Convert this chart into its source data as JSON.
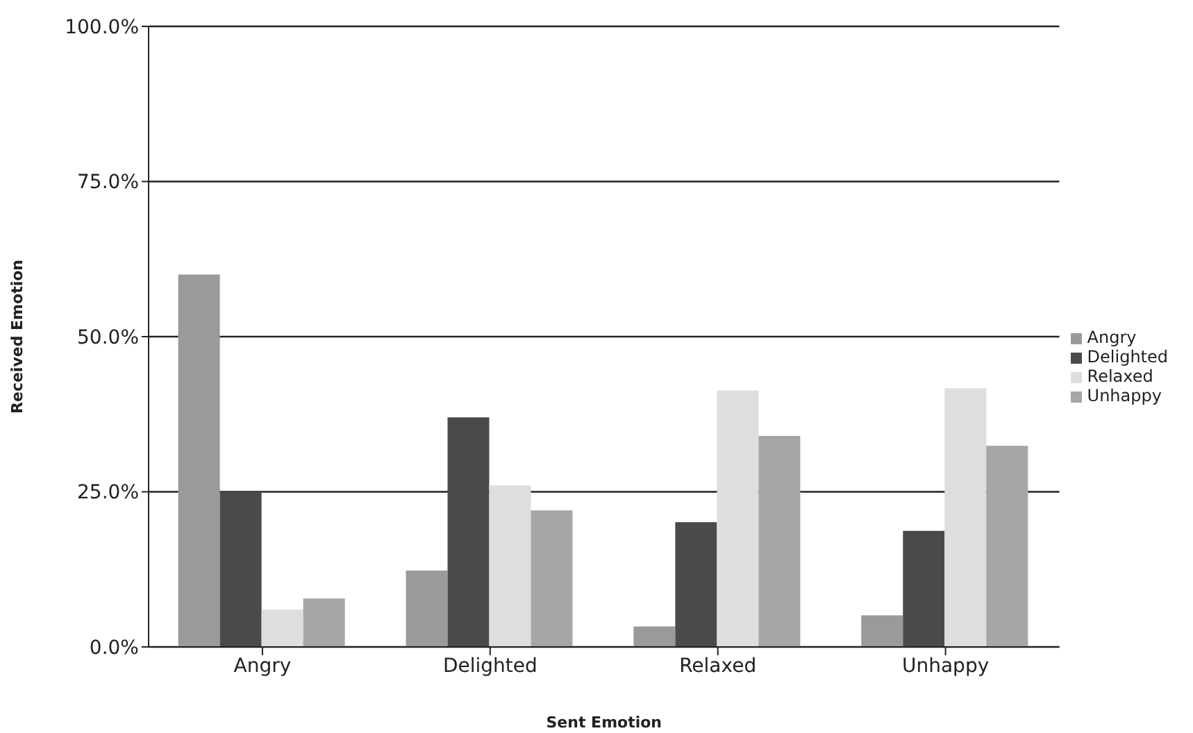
{
  "chart_data": {
    "type": "bar",
    "xlabel": "Sent Emotion",
    "ylabel": "Received Emotion",
    "categories": [
      "Angry",
      "Delighted",
      "Relaxed",
      "Unhappy"
    ],
    "series": [
      {
        "name": "Angry",
        "color": "#9a9a9a",
        "values": [
          60,
          12.3,
          3.3,
          5.1
        ]
      },
      {
        "name": "Delighted",
        "color": "#4a4a4a",
        "values": [
          25,
          37,
          20.1,
          18.7
        ]
      },
      {
        "name": "Relaxed",
        "color": "#dedede",
        "values": [
          6,
          26,
          41.3,
          41.7
        ]
      },
      {
        "name": "Unhappy",
        "color": "#a6a6a6",
        "values": [
          7.8,
          22,
          34,
          32.4
        ]
      }
    ],
    "ylim": [
      0,
      100
    ],
    "yticks": [
      {
        "value": 0,
        "label": "0.0%"
      },
      {
        "value": 25,
        "label": "25.0%"
      },
      {
        "value": 50,
        "label": "50.0%"
      },
      {
        "value": 75,
        "label": "75.0%"
      },
      {
        "value": 100,
        "label": "100.0%"
      }
    ],
    "grid": "y",
    "legend": "right"
  }
}
